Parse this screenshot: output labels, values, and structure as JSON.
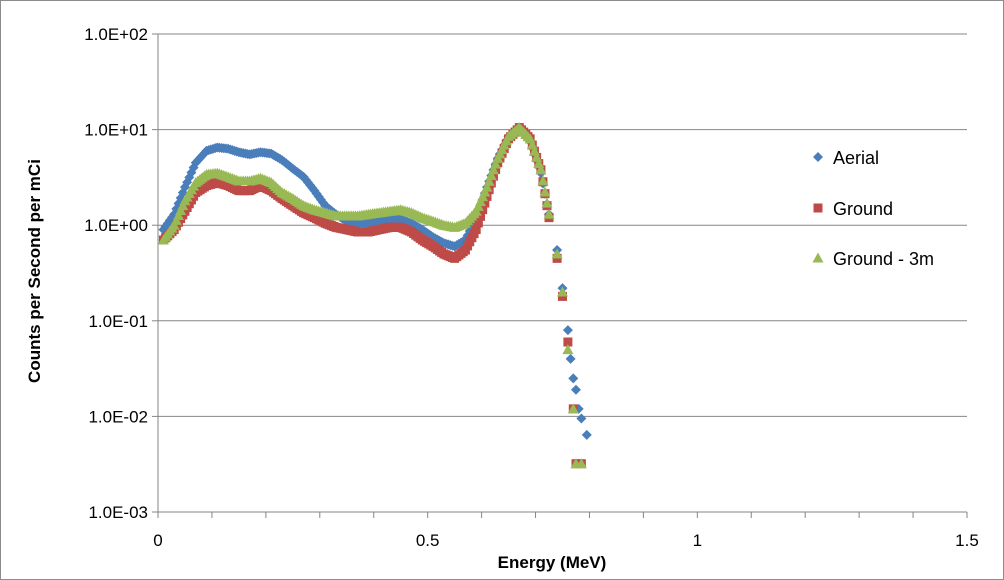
{
  "chart_data": {
    "type": "scatter",
    "title": "",
    "xlabel": "Energy (MeV)",
    "ylabel": "Counts per Second per mCi",
    "xlim": [
      0,
      1.5
    ],
    "ylim": [
      0.001,
      100
    ],
    "yscale": "log",
    "grid": "horizontal major gridlines",
    "legend_position": "right",
    "x_ticks": [
      {
        "value": 0,
        "label": "0"
      },
      {
        "value": 0.5,
        "label": "0.5"
      },
      {
        "value": 1,
        "label": "1"
      },
      {
        "value": 1.5,
        "label": "1.5"
      }
    ],
    "y_ticks": [
      {
        "value": 100,
        "label": "1.0E+02"
      },
      {
        "value": 10,
        "label": "1.0E+01"
      },
      {
        "value": 1,
        "label": "1.0E+00"
      },
      {
        "value": 0.1,
        "label": "1.0E-01"
      },
      {
        "value": 0.01,
        "label": "1.0E-02"
      },
      {
        "value": 0.001,
        "label": "1.0E-03"
      }
    ],
    "series": [
      {
        "name": "Aerial",
        "marker": "diamond",
        "color": "#4a7ebb",
        "points": [
          [
            0.01,
            0.9
          ],
          [
            0.03,
            1.3
          ],
          [
            0.05,
            2.5
          ],
          [
            0.07,
            4.5
          ],
          [
            0.09,
            6.0
          ],
          [
            0.11,
            6.5
          ],
          [
            0.13,
            6.3
          ],
          [
            0.15,
            5.8
          ],
          [
            0.17,
            5.5
          ],
          [
            0.19,
            5.8
          ],
          [
            0.21,
            5.6
          ],
          [
            0.23,
            4.8
          ],
          [
            0.25,
            3.9
          ],
          [
            0.27,
            3.2
          ],
          [
            0.29,
            2.3
          ],
          [
            0.31,
            1.6
          ],
          [
            0.33,
            1.3
          ],
          [
            0.35,
            1.1
          ],
          [
            0.37,
            1.05
          ],
          [
            0.39,
            1.05
          ],
          [
            0.41,
            1.1
          ],
          [
            0.43,
            1.15
          ],
          [
            0.45,
            1.15
          ],
          [
            0.47,
            1.05
          ],
          [
            0.49,
            0.9
          ],
          [
            0.51,
            0.75
          ],
          [
            0.53,
            0.65
          ],
          [
            0.55,
            0.6
          ],
          [
            0.57,
            0.7
          ],
          [
            0.59,
            1.2
          ],
          [
            0.61,
            2.5
          ],
          [
            0.63,
            5.0
          ],
          [
            0.65,
            8.5
          ],
          [
            0.67,
            10.5
          ],
          [
            0.69,
            7.5
          ],
          [
            0.71,
            3.5
          ],
          [
            0.725,
            1.3
          ],
          [
            0.74,
            0.55
          ],
          [
            0.75,
            0.22
          ],
          [
            0.76,
            0.08
          ],
          [
            0.765,
            0.04
          ],
          [
            0.77,
            0.025
          ],
          [
            0.775,
            0.019
          ],
          [
            0.78,
            0.012
          ],
          [
            0.785,
            0.0095
          ],
          [
            0.795,
            0.0064
          ]
        ]
      },
      {
        "name": "Ground",
        "marker": "square",
        "color": "#be4b48",
        "points": [
          [
            0.01,
            0.7
          ],
          [
            0.03,
            0.9
          ],
          [
            0.05,
            1.4
          ],
          [
            0.07,
            2.2
          ],
          [
            0.09,
            2.6
          ],
          [
            0.11,
            2.8
          ],
          [
            0.13,
            2.6
          ],
          [
            0.15,
            2.3
          ],
          [
            0.17,
            2.3
          ],
          [
            0.19,
            2.6
          ],
          [
            0.21,
            2.3
          ],
          [
            0.23,
            1.9
          ],
          [
            0.25,
            1.6
          ],
          [
            0.27,
            1.35
          ],
          [
            0.29,
            1.2
          ],
          [
            0.31,
            1.05
          ],
          [
            0.33,
            0.95
          ],
          [
            0.35,
            0.9
          ],
          [
            0.37,
            0.85
          ],
          [
            0.39,
            0.85
          ],
          [
            0.41,
            0.9
          ],
          [
            0.43,
            0.95
          ],
          [
            0.45,
            0.95
          ],
          [
            0.47,
            0.85
          ],
          [
            0.49,
            0.7
          ],
          [
            0.51,
            0.6
          ],
          [
            0.53,
            0.5
          ],
          [
            0.55,
            0.45
          ],
          [
            0.57,
            0.55
          ],
          [
            0.59,
            0.9
          ],
          [
            0.61,
            2.0
          ],
          [
            0.63,
            4.5
          ],
          [
            0.65,
            8.0
          ],
          [
            0.67,
            10.5
          ],
          [
            0.69,
            8.0
          ],
          [
            0.71,
            3.8
          ],
          [
            0.725,
            1.2
          ],
          [
            0.74,
            0.45
          ],
          [
            0.75,
            0.18
          ],
          [
            0.76,
            0.06
          ],
          [
            0.77,
            0.012
          ],
          [
            0.775,
            0.0032
          ],
          [
            0.785,
            0.0032
          ]
        ]
      },
      {
        "name": "Ground - 3m",
        "marker": "triangle",
        "color": "#98b954",
        "points": [
          [
            0.01,
            0.7
          ],
          [
            0.03,
            1.0
          ],
          [
            0.05,
            1.8
          ],
          [
            0.07,
            2.8
          ],
          [
            0.09,
            3.4
          ],
          [
            0.11,
            3.5
          ],
          [
            0.13,
            3.2
          ],
          [
            0.15,
            2.9
          ],
          [
            0.17,
            2.9
          ],
          [
            0.19,
            3.1
          ],
          [
            0.21,
            2.8
          ],
          [
            0.23,
            2.2
          ],
          [
            0.25,
            1.9
          ],
          [
            0.27,
            1.6
          ],
          [
            0.29,
            1.45
          ],
          [
            0.31,
            1.35
          ],
          [
            0.33,
            1.25
          ],
          [
            0.35,
            1.25
          ],
          [
            0.37,
            1.25
          ],
          [
            0.39,
            1.3
          ],
          [
            0.41,
            1.35
          ],
          [
            0.43,
            1.4
          ],
          [
            0.45,
            1.45
          ],
          [
            0.47,
            1.35
          ],
          [
            0.49,
            1.2
          ],
          [
            0.51,
            1.1
          ],
          [
            0.53,
            1.0
          ],
          [
            0.55,
            0.95
          ],
          [
            0.57,
            1.05
          ],
          [
            0.59,
            1.4
          ],
          [
            0.61,
            2.5
          ],
          [
            0.63,
            5.0
          ],
          [
            0.65,
            8.5
          ],
          [
            0.67,
            10.5
          ],
          [
            0.69,
            8.0
          ],
          [
            0.71,
            3.8
          ],
          [
            0.725,
            1.3
          ],
          [
            0.74,
            0.5
          ],
          [
            0.75,
            0.2
          ],
          [
            0.76,
            0.05
          ],
          [
            0.77,
            0.012
          ],
          [
            0.775,
            0.0032
          ],
          [
            0.785,
            0.0032
          ]
        ]
      }
    ]
  }
}
